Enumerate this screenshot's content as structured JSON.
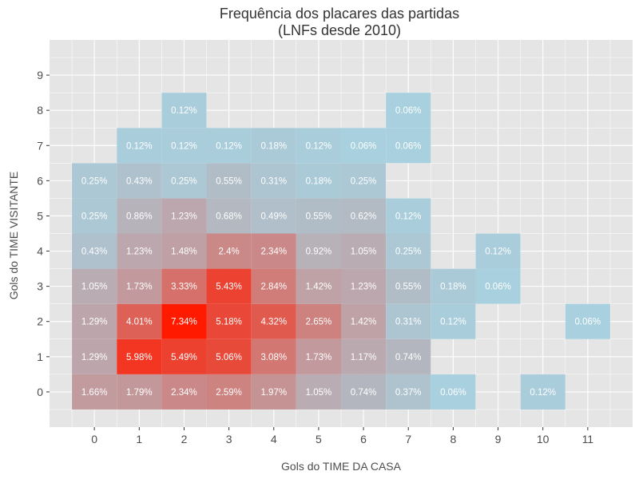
{
  "chart_data": {
    "type": "heatmap",
    "title_line1": "Frequência dos placares das partidas",
    "title_line2": "(LNFs desde 2010)",
    "xlabel": "Gols do TIME DA CASA",
    "ylabel": "Gols do TIME VISITANTE",
    "x_ticks": [
      "0",
      "1",
      "2",
      "3",
      "4",
      "5",
      "6",
      "7",
      "8",
      "9",
      "10",
      "11"
    ],
    "y_ticks": [
      "0",
      "1",
      "2",
      "3",
      "4",
      "5",
      "6",
      "7",
      "8",
      "9"
    ],
    "xlim": [
      -1,
      12
    ],
    "ylim": [
      -1,
      10
    ],
    "grid": true,
    "color_low": "#a6d4e3",
    "color_high": "#ff1a00",
    "panel_background": "#e5e5e5",
    "cells": [
      {
        "x": 0,
        "y": 0,
        "value": 1.66,
        "label": "1.66%"
      },
      {
        "x": 1,
        "y": 0,
        "value": 1.79,
        "label": "1.79%"
      },
      {
        "x": 2,
        "y": 0,
        "value": 2.34,
        "label": "2.34%"
      },
      {
        "x": 3,
        "y": 0,
        "value": 2.59,
        "label": "2.59%"
      },
      {
        "x": 4,
        "y": 0,
        "value": 1.97,
        "label": "1.97%"
      },
      {
        "x": 5,
        "y": 0,
        "value": 1.05,
        "label": "1.05%"
      },
      {
        "x": 6,
        "y": 0,
        "value": 0.74,
        "label": "0.74%"
      },
      {
        "x": 7,
        "y": 0,
        "value": 0.37,
        "label": "0.37%"
      },
      {
        "x": 8,
        "y": 0,
        "value": 0.06,
        "label": "0.06%"
      },
      {
        "x": 10,
        "y": 0,
        "value": 0.12,
        "label": "0.12%"
      },
      {
        "x": 0,
        "y": 1,
        "value": 1.29,
        "label": "1.29%"
      },
      {
        "x": 1,
        "y": 1,
        "value": 5.98,
        "label": "5.98%"
      },
      {
        "x": 2,
        "y": 1,
        "value": 5.49,
        "label": "5.49%"
      },
      {
        "x": 3,
        "y": 1,
        "value": 5.06,
        "label": "5.06%"
      },
      {
        "x": 4,
        "y": 1,
        "value": 3.08,
        "label": "3.08%"
      },
      {
        "x": 5,
        "y": 1,
        "value": 1.73,
        "label": "1.73%"
      },
      {
        "x": 6,
        "y": 1,
        "value": 1.17,
        "label": "1.17%"
      },
      {
        "x": 7,
        "y": 1,
        "value": 0.74,
        "label": "0.74%"
      },
      {
        "x": 0,
        "y": 2,
        "value": 1.29,
        "label": "1.29%"
      },
      {
        "x": 1,
        "y": 2,
        "value": 4.01,
        "label": "4.01%"
      },
      {
        "x": 2,
        "y": 2,
        "value": 7.34,
        "label": "7.34%"
      },
      {
        "x": 3,
        "y": 2,
        "value": 5.18,
        "label": "5.18%"
      },
      {
        "x": 4,
        "y": 2,
        "value": 4.32,
        "label": "4.32%"
      },
      {
        "x": 5,
        "y": 2,
        "value": 2.65,
        "label": "2.65%"
      },
      {
        "x": 6,
        "y": 2,
        "value": 1.42,
        "label": "1.42%"
      },
      {
        "x": 7,
        "y": 2,
        "value": 0.31,
        "label": "0.31%"
      },
      {
        "x": 8,
        "y": 2,
        "value": 0.12,
        "label": "0.12%"
      },
      {
        "x": 11,
        "y": 2,
        "value": 0.06,
        "label": "0.06%"
      },
      {
        "x": 0,
        "y": 3,
        "value": 1.05,
        "label": "1.05%"
      },
      {
        "x": 1,
        "y": 3,
        "value": 1.73,
        "label": "1.73%"
      },
      {
        "x": 2,
        "y": 3,
        "value": 3.33,
        "label": "3.33%"
      },
      {
        "x": 3,
        "y": 3,
        "value": 5.43,
        "label": "5.43%"
      },
      {
        "x": 4,
        "y": 3,
        "value": 2.84,
        "label": "2.84%"
      },
      {
        "x": 5,
        "y": 3,
        "value": 1.42,
        "label": "1.42%"
      },
      {
        "x": 6,
        "y": 3,
        "value": 1.23,
        "label": "1.23%"
      },
      {
        "x": 7,
        "y": 3,
        "value": 0.55,
        "label": "0.55%"
      },
      {
        "x": 8,
        "y": 3,
        "value": 0.18,
        "label": "0.18%"
      },
      {
        "x": 9,
        "y": 3,
        "value": 0.06,
        "label": "0.06%"
      },
      {
        "x": 0,
        "y": 4,
        "value": 0.43,
        "label": "0.43%"
      },
      {
        "x": 1,
        "y": 4,
        "value": 1.23,
        "label": "1.23%"
      },
      {
        "x": 2,
        "y": 4,
        "value": 1.48,
        "label": "1.48%"
      },
      {
        "x": 3,
        "y": 4,
        "value": 2.4,
        "label": "2.4%"
      },
      {
        "x": 4,
        "y": 4,
        "value": 2.34,
        "label": "2.34%"
      },
      {
        "x": 5,
        "y": 4,
        "value": 0.92,
        "label": "0.92%"
      },
      {
        "x": 6,
        "y": 4,
        "value": 1.05,
        "label": "1.05%"
      },
      {
        "x": 7,
        "y": 4,
        "value": 0.25,
        "label": "0.25%"
      },
      {
        "x": 9,
        "y": 4,
        "value": 0.12,
        "label": "0.12%"
      },
      {
        "x": 0,
        "y": 5,
        "value": 0.25,
        "label": "0.25%"
      },
      {
        "x": 1,
        "y": 5,
        "value": 0.86,
        "label": "0.86%"
      },
      {
        "x": 2,
        "y": 5,
        "value": 1.23,
        "label": "1.23%"
      },
      {
        "x": 3,
        "y": 5,
        "value": 0.68,
        "label": "0.68%"
      },
      {
        "x": 4,
        "y": 5,
        "value": 0.49,
        "label": "0.49%"
      },
      {
        "x": 5,
        "y": 5,
        "value": 0.55,
        "label": "0.55%"
      },
      {
        "x": 6,
        "y": 5,
        "value": 0.62,
        "label": "0.62%"
      },
      {
        "x": 7,
        "y": 5,
        "value": 0.12,
        "label": "0.12%"
      },
      {
        "x": 0,
        "y": 6,
        "value": 0.25,
        "label": "0.25%"
      },
      {
        "x": 1,
        "y": 6,
        "value": 0.43,
        "label": "0.43%"
      },
      {
        "x": 2,
        "y": 6,
        "value": 0.25,
        "label": "0.25%"
      },
      {
        "x": 3,
        "y": 6,
        "value": 0.55,
        "label": "0.55%"
      },
      {
        "x": 4,
        "y": 6,
        "value": 0.31,
        "label": "0.31%"
      },
      {
        "x": 5,
        "y": 6,
        "value": 0.18,
        "label": "0.18%"
      },
      {
        "x": 6,
        "y": 6,
        "value": 0.25,
        "label": "0.25%"
      },
      {
        "x": 1,
        "y": 7,
        "value": 0.12,
        "label": "0.12%"
      },
      {
        "x": 2,
        "y": 7,
        "value": 0.12,
        "label": "0.12%"
      },
      {
        "x": 3,
        "y": 7,
        "value": 0.12,
        "label": "0.12%"
      },
      {
        "x": 4,
        "y": 7,
        "value": 0.18,
        "label": "0.18%"
      },
      {
        "x": 5,
        "y": 7,
        "value": 0.12,
        "label": "0.12%"
      },
      {
        "x": 6,
        "y": 7,
        "value": 0.06,
        "label": "0.06%"
      },
      {
        "x": 7,
        "y": 7,
        "value": 0.06,
        "label": "0.06%"
      },
      {
        "x": 2,
        "y": 8,
        "value": 0.12,
        "label": "0.12%"
      },
      {
        "x": 7,
        "y": 8,
        "value": 0.06,
        "label": "0.06%"
      }
    ]
  }
}
